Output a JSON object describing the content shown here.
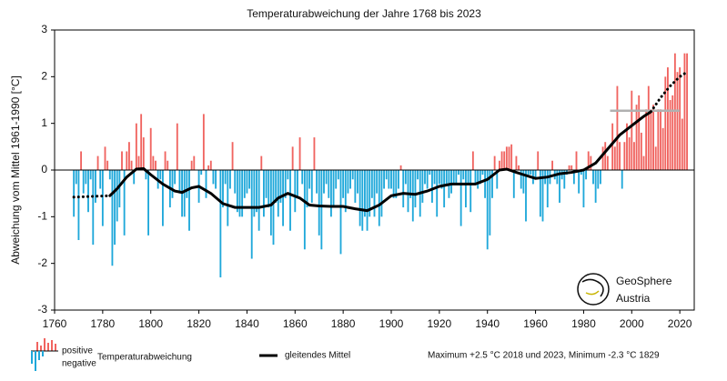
{
  "chart_data": {
    "type": "bar",
    "title": "Temperaturabweichung der Jahre 1768 bis 2023",
    "y_label": "Abweichung vom Mittel 1961-1990 [°C]",
    "x": [
      1768,
      1769,
      1770,
      1771,
      1772,
      1773,
      1774,
      1775,
      1776,
      1777,
      1778,
      1779,
      1780,
      1781,
      1782,
      1783,
      1784,
      1785,
      1786,
      1787,
      1788,
      1789,
      1790,
      1791,
      1792,
      1793,
      1794,
      1795,
      1796,
      1797,
      1798,
      1799,
      1800,
      1801,
      1802,
      1803,
      1804,
      1805,
      1806,
      1807,
      1808,
      1809,
      1810,
      1811,
      1812,
      1813,
      1814,
      1815,
      1816,
      1817,
      1818,
      1819,
      1820,
      1821,
      1822,
      1823,
      1824,
      1825,
      1826,
      1827,
      1828,
      1829,
      1830,
      1831,
      1832,
      1833,
      1834,
      1835,
      1836,
      1837,
      1838,
      1839,
      1840,
      1841,
      1842,
      1843,
      1844,
      1845,
      1846,
      1847,
      1848,
      1849,
      1850,
      1851,
      1852,
      1853,
      1854,
      1855,
      1856,
      1857,
      1858,
      1859,
      1860,
      1861,
      1862,
      1863,
      1864,
      1865,
      1866,
      1867,
      1868,
      1869,
      1870,
      1871,
      1872,
      1873,
      1874,
      1875,
      1876,
      1877,
      1878,
      1879,
      1880,
      1881,
      1882,
      1883,
      1884,
      1885,
      1886,
      1887,
      1888,
      1889,
      1890,
      1891,
      1892,
      1893,
      1894,
      1895,
      1896,
      1897,
      1898,
      1899,
      1900,
      1901,
      1902,
      1903,
      1904,
      1905,
      1906,
      1907,
      1908,
      1909,
      1910,
      1911,
      1912,
      1913,
      1914,
      1915,
      1916,
      1917,
      1918,
      1919,
      1920,
      1921,
      1922,
      1923,
      1924,
      1925,
      1926,
      1927,
      1928,
      1929,
      1930,
      1931,
      1932,
      1933,
      1934,
      1935,
      1936,
      1937,
      1938,
      1939,
      1940,
      1941,
      1942,
      1943,
      1944,
      1945,
      1946,
      1947,
      1948,
      1949,
      1950,
      1951,
      1952,
      1953,
      1954,
      1955,
      1956,
      1957,
      1958,
      1959,
      1960,
      1961,
      1962,
      1963,
      1964,
      1965,
      1966,
      1967,
      1968,
      1969,
      1970,
      1971,
      1972,
      1973,
      1974,
      1975,
      1976,
      1977,
      1978,
      1979,
      1980,
      1981,
      1982,
      1983,
      1984,
      1985,
      1986,
      1987,
      1988,
      1989,
      1990,
      1991,
      1992,
      1993,
      1994,
      1995,
      1996,
      1997,
      1998,
      1999,
      2000,
      2001,
      2002,
      2003,
      2004,
      2005,
      2006,
      2007,
      2008,
      2009,
      2010,
      2011,
      2012,
      2013,
      2014,
      2015,
      2016,
      2017,
      2018,
      2019,
      2020,
      2021,
      2022,
      2023
    ],
    "values": [
      -1.0,
      -0.3,
      -1.5,
      0.4,
      -0.5,
      -0.3,
      -0.9,
      -0.2,
      -1.6,
      -0.7,
      0.3,
      -0.4,
      -1.2,
      0.5,
      0.2,
      -0.2,
      -2.05,
      -1.6,
      -1.1,
      -0.8,
      0.4,
      -1.4,
      0.4,
      0.6,
      0.2,
      -0.3,
      1.0,
      0.3,
      1.2,
      0.7,
      -0.2,
      -1.4,
      0.9,
      0.3,
      0.2,
      -0.4,
      -0.2,
      -1.2,
      0.4,
      0.2,
      -0.8,
      -0.6,
      -0.3,
      1.0,
      -0.5,
      -1.0,
      -1.0,
      -0.6,
      -1.3,
      0.2,
      0.3,
      0.0,
      -0.7,
      -0.1,
      1.2,
      -0.6,
      0.1,
      0.2,
      -0.3,
      -0.4,
      0.0,
      -2.3,
      -0.8,
      -0.3,
      -1.2,
      -0.4,
      0.6,
      -0.5,
      -0.9,
      -1.0,
      -1.0,
      -0.6,
      -0.5,
      -0.4,
      -1.9,
      -1.0,
      -0.9,
      -1.3,
      0.3,
      -1.0,
      -0.6,
      -0.8,
      -1.4,
      -1.6,
      -0.7,
      -1.0,
      -0.7,
      -1.2,
      -0.6,
      -0.2,
      -1.3,
      0.5,
      -0.9,
      -0.6,
      0.7,
      -0.3,
      -1.7,
      -0.8,
      -0.4,
      -0.7,
      0.7,
      -0.5,
      -1.4,
      -1.7,
      -0.5,
      -0.3,
      -0.6,
      -1.0,
      -0.8,
      -0.4,
      -0.2,
      -1.8,
      -0.6,
      -0.9,
      -0.5,
      -0.4,
      -0.2,
      -0.7,
      -0.5,
      -1.2,
      -1.3,
      -1.0,
      -1.3,
      -1.0,
      -0.6,
      -1.0,
      -0.5,
      -1.2,
      -1.0,
      -0.4,
      -0.2,
      -0.4,
      -0.4,
      -0.6,
      -0.6,
      -0.4,
      0.1,
      -0.8,
      -0.3,
      -0.9,
      -0.6,
      -1.1,
      -0.8,
      -0.2,
      -1.0,
      -0.7,
      -0.3,
      -0.4,
      -0.1,
      -0.7,
      -0.3,
      -1.0,
      -0.3,
      -0.4,
      -0.8,
      -0.3,
      -0.6,
      -0.5,
      -0.3,
      -0.3,
      -0.1,
      -1.2,
      -0.2,
      -0.8,
      -0.3,
      -0.9,
      0.4,
      -0.3,
      -0.4,
      -0.3,
      -0.1,
      -0.6,
      -1.7,
      -1.4,
      -0.6,
      0.3,
      -0.4,
      0.2,
      0.4,
      0.4,
      0.5,
      0.5,
      0.55,
      -0.6,
      0.3,
      0.1,
      -0.4,
      -0.5,
      -1.1,
      -0.1,
      -0.1,
      -0.3,
      -0.2,
      0.4,
      -1.0,
      -1.1,
      -0.3,
      -0.8,
      -0.3,
      0.2,
      -0.2,
      -0.3,
      -0.7,
      -0.2,
      -0.4,
      -0.1,
      0.1,
      0.1,
      -0.3,
      0.4,
      -0.5,
      -0.1,
      -0.8,
      -0.2,
      0.4,
      0.3,
      -0.3,
      -0.7,
      -0.4,
      -0.3,
      0.5,
      0.6,
      0.3,
      0.0,
      1.0,
      0.5,
      1.8,
      0.6,
      -0.4,
      0.6,
      1.0,
      0.7,
      1.7,
      0.6,
      1.4,
      1.6,
      0.8,
      0.3,
      1.3,
      1.8,
      1.3,
      1.4,
      0.5,
      1.3,
      1.3,
      0.9,
      2.0,
      2.2,
      1.5,
      1.6,
      2.5,
      2.1,
      2.2,
      1.1,
      2.5,
      2.5
    ],
    "positive_color": "#f06460",
    "negative_color": "#1fa8da",
    "mean_line": {
      "name": "gleitendes Mittel",
      "color": "#000000",
      "segments": [
        {
          "style": "dotted",
          "x": [
            1768,
            1773,
            1778,
            1783
          ],
          "values": [
            -0.58,
            -0.57,
            -0.56,
            -0.55
          ]
        },
        {
          "style": "solid",
          "x": [
            1783,
            1786,
            1790,
            1794,
            1797,
            1800,
            1805,
            1810,
            1813,
            1817,
            1820,
            1825,
            1830,
            1835,
            1840,
            1845,
            1850,
            1853,
            1857,
            1862,
            1866,
            1870,
            1875,
            1880,
            1885,
            1890,
            1895,
            1900,
            1905,
            1910,
            1915,
            1920,
            1925,
            1930,
            1935,
            1940,
            1945,
            1948,
            1952,
            1955,
            1960,
            1965,
            1970,
            1975,
            1980,
            1985,
            1990,
            1995,
            2000,
            2005,
            2008
          ],
          "values": [
            -0.55,
            -0.4,
            -0.15,
            0.02,
            0.03,
            -0.1,
            -0.3,
            -0.45,
            -0.48,
            -0.38,
            -0.35,
            -0.5,
            -0.72,
            -0.8,
            -0.8,
            -0.8,
            -0.75,
            -0.6,
            -0.5,
            -0.6,
            -0.75,
            -0.77,
            -0.78,
            -0.78,
            -0.83,
            -0.87,
            -0.75,
            -0.55,
            -0.5,
            -0.52,
            -0.45,
            -0.35,
            -0.3,
            -0.3,
            -0.3,
            -0.2,
            0.0,
            0.02,
            -0.05,
            -0.1,
            -0.18,
            -0.15,
            -0.08,
            -0.05,
            0.0,
            0.15,
            0.45,
            0.75,
            0.95,
            1.15,
            1.25
          ]
        },
        {
          "style": "dotted",
          "x": [
            2008,
            2012,
            2016,
            2020,
            2023
          ],
          "values": [
            1.25,
            1.55,
            1.8,
            2.0,
            2.1
          ]
        }
      ]
    },
    "reference_line": {
      "x": [
        1991,
        2020
      ],
      "value": 1.27,
      "color": "#b0b0b0"
    },
    "xlim": [
      1760,
      2026
    ],
    "xticks": [
      1760,
      1780,
      1800,
      1820,
      1840,
      1860,
      1880,
      1900,
      1920,
      1940,
      1960,
      1980,
      2000,
      2020
    ],
    "ylim": [
      -3,
      3
    ],
    "yticks": [
      -3,
      -2,
      -1,
      0,
      1,
      2,
      3
    ],
    "legend": {
      "positive": "positive",
      "negative": "negative",
      "bars_label": "Temperaturabweichung"
    },
    "note": "Maximum +2.5 °C 2018 und 2023, Minimum -2.3 °C 1829",
    "logo": [
      "GeoSphere",
      "Austria"
    ]
  }
}
